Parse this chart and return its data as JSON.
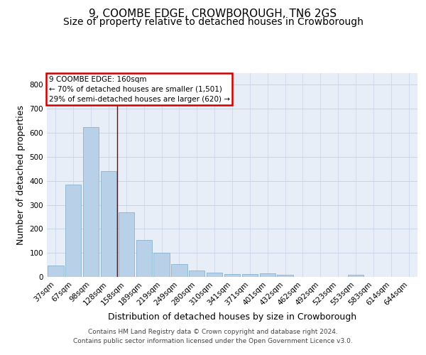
{
  "title1": "9, COOMBE EDGE, CROWBOROUGH, TN6 2GS",
  "title2": "Size of property relative to detached houses in Crowborough",
  "xlabel": "Distribution of detached houses by size in Crowborough",
  "ylabel": "Number of detached properties",
  "categories": [
    "37sqm",
    "67sqm",
    "98sqm",
    "128sqm",
    "158sqm",
    "189sqm",
    "219sqm",
    "249sqm",
    "280sqm",
    "310sqm",
    "341sqm",
    "371sqm",
    "401sqm",
    "432sqm",
    "462sqm",
    "492sqm",
    "523sqm",
    "553sqm",
    "583sqm",
    "614sqm",
    "644sqm"
  ],
  "values": [
    48,
    385,
    625,
    442,
    270,
    155,
    100,
    52,
    28,
    18,
    12,
    11,
    15,
    8,
    0,
    0,
    0,
    8,
    0,
    0,
    0
  ],
  "bar_color": "#b8d0e8",
  "bar_edge_color": "#7aaac8",
  "vline_x_index": 4,
  "vline_color": "#8B0000",
  "annotation_lines": [
    "9 COOMBE EDGE: 160sqm",
    "← 70% of detached houses are smaller (1,501)",
    "29% of semi-detached houses are larger (620) →"
  ],
  "annotation_box_color": "#cc0000",
  "ylim": [
    0,
    850
  ],
  "yticks": [
    0,
    100,
    200,
    300,
    400,
    500,
    600,
    700,
    800
  ],
  "grid_color": "#c8d4e8",
  "background_color": "#e8eef8",
  "footer_line1": "Contains HM Land Registry data © Crown copyright and database right 2024.",
  "footer_line2": "Contains public sector information licensed under the Open Government Licence v3.0.",
  "title_fontsize": 11,
  "subtitle_fontsize": 10,
  "ylabel_fontsize": 9,
  "xlabel_fontsize": 9,
  "tick_fontsize": 7.5,
  "annotation_fontsize": 7.5,
  "footer_fontsize": 6.5
}
